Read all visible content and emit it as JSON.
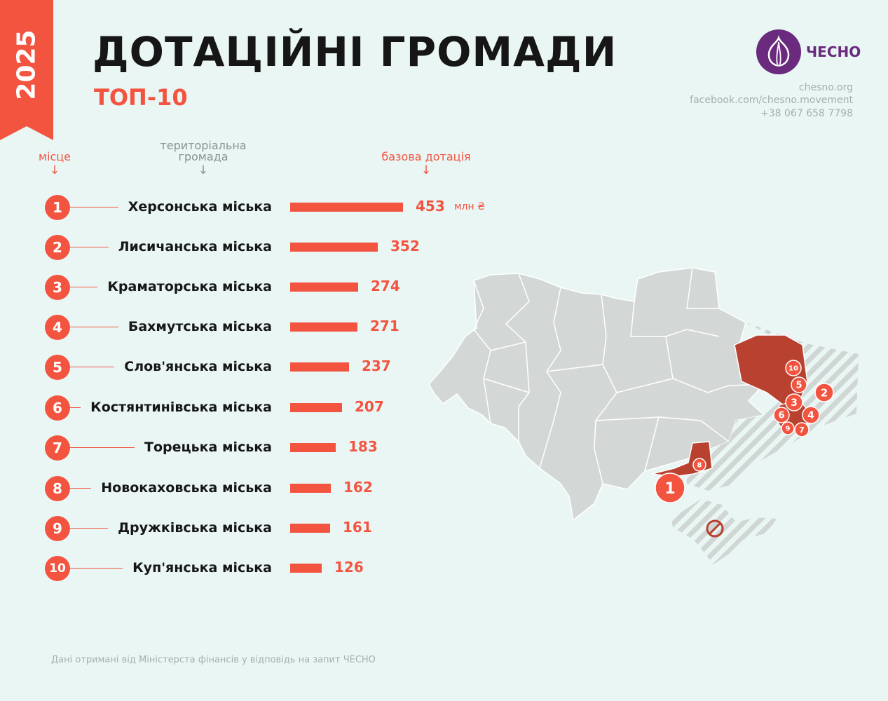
{
  "year": "2025",
  "title": "ДОТАЦІЙНІ ГРОМАДИ",
  "subtitle": "ТОП-10",
  "brand": {
    "name": "ЧЕСНО",
    "site": "chesno.org",
    "facebook": "facebook.com/chesno.movement",
    "phone": "+38 067 658 7798",
    "color": "#6a2a7d"
  },
  "columns": {
    "place": "місце",
    "community_line1": "територіальна",
    "community_line2": "громада",
    "subsidy": "базова дотація",
    "arrow": "↓"
  },
  "unit": "млн ₴",
  "accent_color": "#f35440",
  "chart_data": {
    "type": "bar",
    "categories": [
      "Херсонська міська",
      "Лисичанська міська",
      "Краматорська міська",
      "Бахмутська міська",
      "Слов'янська міська",
      "Костянтинівська міська",
      "Торецька міська",
      "Новокаховська міська",
      "Дружківська міська",
      "Куп'янська міська"
    ],
    "ranks": [
      "1",
      "2",
      "3",
      "4",
      "5",
      "6",
      "7",
      "8",
      "9",
      "10"
    ],
    "values": [
      453,
      352,
      274,
      271,
      237,
      207,
      183,
      162,
      161,
      126
    ],
    "xlabel": "базова дотація",
    "ylabel": "територіальна громада",
    "xlim": [
      0,
      453
    ],
    "unit": "млн ₴"
  },
  "map": {
    "markers": [
      "1",
      "2",
      "3",
      "4",
      "5",
      "6",
      "7",
      "8",
      "9",
      "10"
    ],
    "no_entry_icon": "no-entry-icon"
  },
  "footnote": "Дані отримані від Міністерста фінансів у відповідь на запит ЧЕСНО"
}
